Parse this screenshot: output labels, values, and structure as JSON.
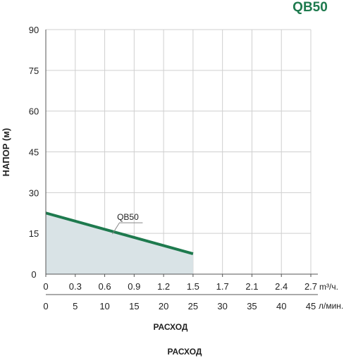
{
  "chart_data": {
    "type": "area",
    "title": "QB50",
    "ylabel": "НАПОР (м)",
    "xlabel": "РАСХОД",
    "footer_label": "РАСХОД",
    "ylim": [
      0,
      90
    ],
    "yticks": [
      0,
      15,
      30,
      45,
      60,
      75,
      90
    ],
    "x_lpm_range": [
      0,
      45
    ],
    "x_axis_m3h": {
      "unit": "m³/ч.",
      "tick_labels": [
        "0",
        "0.3",
        "0.6",
        "0.9",
        "1.2",
        "1.5",
        "1.7",
        "2.1",
        "2.4",
        "2.7"
      ]
    },
    "x_axis_lpm": {
      "unit": "л/мин.",
      "tick_labels": [
        "0",
        "5",
        "10",
        "15",
        "20",
        "25",
        "30",
        "35",
        "40",
        "45"
      ]
    },
    "grid": true,
    "series": [
      {
        "name": "QB50",
        "color": "#1e7a4e",
        "fill_color": "#d9e3e6",
        "x": [
          0,
          25
        ],
        "y": [
          22.5,
          7.5
        ]
      }
    ]
  }
}
